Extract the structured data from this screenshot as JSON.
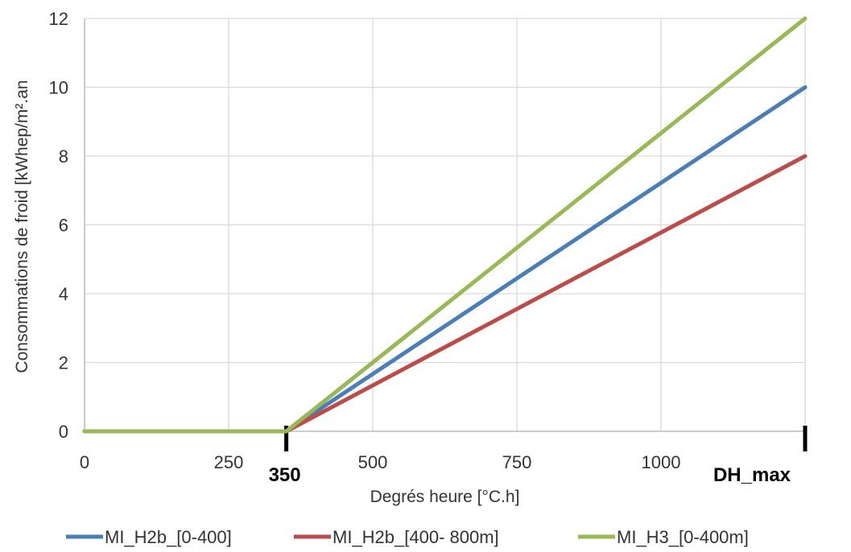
{
  "chart_data": {
    "type": "line",
    "title": "",
    "xlabel": "Degrés heure  [°C.h]",
    "ylabel": "Consommations de froid [kWhep/m².an",
    "xlim": [
      0,
      1250
    ],
    "ylim": [
      0,
      12
    ],
    "x_ticks": [
      0,
      250,
      500,
      750,
      1000
    ],
    "y_ticks": [
      0,
      2,
      4,
      6,
      8,
      10,
      12
    ],
    "marked_ticks": [
      {
        "value": 350,
        "label": "350"
      },
      {
        "value": 1250,
        "label": "DH_max"
      }
    ],
    "grid": true,
    "legend_position": "bottom",
    "series": [
      {
        "name": "MI_H2b_[0-400]",
        "color": "#4a7ebb",
        "x": [
          0,
          350,
          1250
        ],
        "y": [
          0,
          0,
          10
        ]
      },
      {
        "name": "MI_H2b_[400-  800m]",
        "color": "#be4b48",
        "x": [
          0,
          350,
          1250
        ],
        "y": [
          0,
          0,
          8
        ]
      },
      {
        "name": "MI_H3_[0-400m]",
        "color": "#98b954",
        "x": [
          0,
          350,
          1250
        ],
        "y": [
          0,
          0,
          12
        ]
      }
    ]
  }
}
